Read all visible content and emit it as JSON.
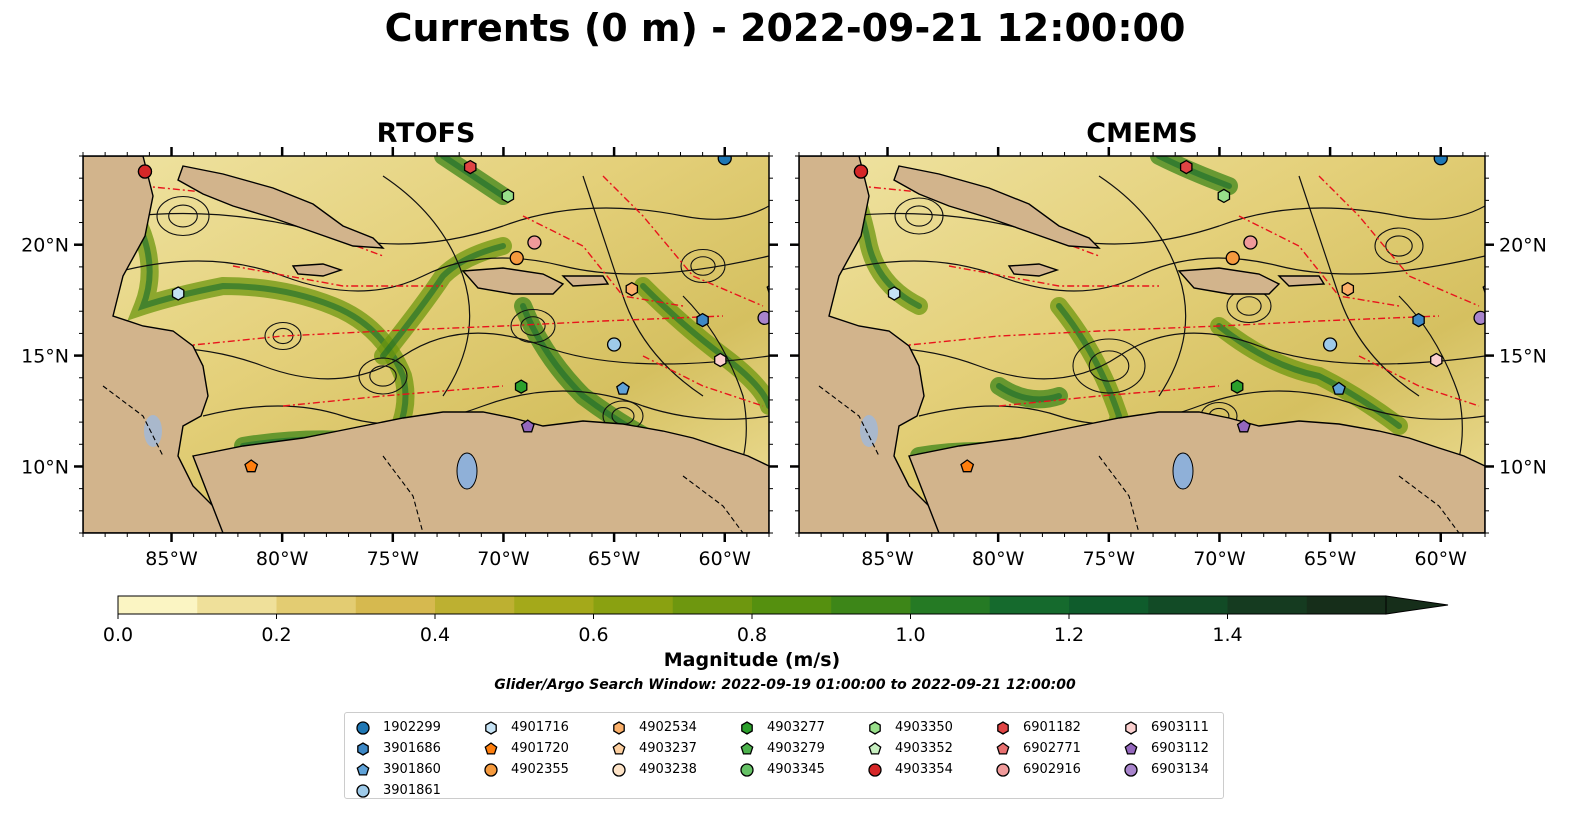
{
  "title": "Currents (0 m) - 2022-09-21 12:00:00",
  "panels": [
    {
      "title": "RTOFS"
    },
    {
      "title": "CMEMS"
    }
  ],
  "axes": {
    "lon_ticks": [
      "85°W",
      "80°W",
      "75°W",
      "70°W",
      "65°W",
      "60°W"
    ],
    "lat_ticks": [
      "20°N",
      "15°N",
      "10°N"
    ]
  },
  "colorbar": {
    "label": "Magnitude (m/s)",
    "ticks": [
      "0.0",
      "0.2",
      "0.4",
      "0.6",
      "0.8",
      "1.0",
      "1.2",
      "1.4"
    ],
    "colors": [
      "#fbf5c3",
      "#efe09a",
      "#e3cc72",
      "#d6b94f",
      "#bdb031",
      "#a4a91a",
      "#8aa111",
      "#6e970f",
      "#55900f",
      "#3d8618",
      "#257a24",
      "#156a2d",
      "#0f5c2c",
      "#124b26",
      "#153b20",
      "#162e1a"
    ],
    "extend": "max"
  },
  "search_window": "Glider/Argo Search Window: 2022-09-19 01:00:00 to 2022-09-21 12:00:00",
  "legend": [
    {
      "label": "1902299",
      "color": "#1f77b4",
      "marker": "circle"
    },
    {
      "label": "3901686",
      "color": "#3d88c6",
      "marker": "hexagon"
    },
    {
      "label": "3901860",
      "color": "#5fa2d8",
      "marker": "pentagon"
    },
    {
      "label": "3901861",
      "color": "#9ecae9",
      "marker": "circle"
    },
    {
      "label": "4901716",
      "color": "#c6e3f5",
      "marker": "hexagon"
    },
    {
      "label": "4901720",
      "color": "#ff7f0e",
      "marker": "pentagon"
    },
    {
      "label": "4902355",
      "color": "#f59a3e",
      "marker": "circle"
    },
    {
      "label": "4902534",
      "color": "#fbb06a",
      "marker": "hexagon"
    },
    {
      "label": "4903237",
      "color": "#fdcf9f",
      "marker": "pentagon"
    },
    {
      "label": "4903238",
      "color": "#fde3c7",
      "marker": "circle"
    },
    {
      "label": "4903277",
      "color": "#2ca02c",
      "marker": "hexagon"
    },
    {
      "label": "4903279",
      "color": "#4db34d",
      "marker": "pentagon"
    },
    {
      "label": "4903345",
      "color": "#66c266",
      "marker": "circle"
    },
    {
      "label": "4903350",
      "color": "#98df8a",
      "marker": "hexagon"
    },
    {
      "label": "4903352",
      "color": "#c7efc0",
      "marker": "pentagon"
    },
    {
      "label": "4903354",
      "color": "#d62728",
      "marker": "circle"
    },
    {
      "label": "6901182",
      "color": "#e04444",
      "marker": "hexagon"
    },
    {
      "label": "6902771",
      "color": "#e87070",
      "marker": "pentagon"
    },
    {
      "label": "6902916",
      "color": "#f09a9a",
      "marker": "circle"
    },
    {
      "label": "6903111",
      "color": "#fbd0cf",
      "marker": "hexagon"
    },
    {
      "label": "6903112",
      "color": "#9467bd",
      "marker": "pentagon"
    },
    {
      "label": "6903134",
      "color": "#a884cc",
      "marker": "circle"
    }
  ]
}
